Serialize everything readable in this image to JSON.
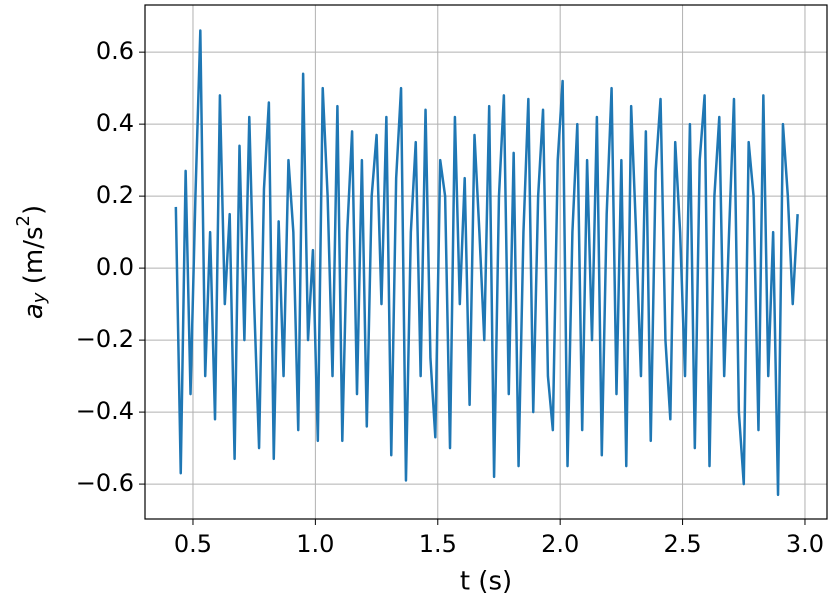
{
  "chart_data": {
    "type": "line",
    "xlabel": "t (s)",
    "ylabel": [
      "a",
      "y",
      " (m/s",
      "2",
      ")"
    ],
    "xlim": [
      0.304,
      3.09
    ],
    "ylim": [
      -0.697,
      0.731
    ],
    "xticks": [
      0.5,
      {
        "value": 1.0,
        "label": "1.0"
      },
      1.5,
      {
        "value": 2.0,
        "label": "2.0"
      },
      2.5,
      {
        "value": 3.0,
        "label": "3.0"
      }
    ],
    "yticks": [
      {
        "value": -0.6,
        "label": "−0.6"
      },
      {
        "value": -0.4,
        "label": "−0.4"
      },
      {
        "value": -0.2,
        "label": "−0.2"
      },
      {
        "value": 0,
        "label": "0.0"
      },
      0.2,
      0.4,
      0.6
    ],
    "grid": true,
    "x": [
      0.43,
      0.45,
      0.47,
      0.49,
      0.51,
      0.53,
      0.55,
      0.57,
      0.59,
      0.61,
      0.63,
      0.65,
      0.67,
      0.69,
      0.71,
      0.73,
      0.75,
      0.77,
      0.79,
      0.81,
      0.83,
      0.85,
      0.87,
      0.89,
      0.91,
      0.93,
      0.95,
      0.97,
      0.99,
      1.01,
      1.03,
      1.05,
      1.07,
      1.09,
      1.11,
      1.13,
      1.15,
      1.17,
      1.19,
      1.21,
      1.23,
      1.25,
      1.27,
      1.29,
      1.31,
      1.33,
      1.35,
      1.37,
      1.39,
      1.41,
      1.43,
      1.45,
      1.47,
      1.49,
      1.51,
      1.53,
      1.55,
      1.57,
      1.59,
      1.61,
      1.63,
      1.65,
      1.67,
      1.69,
      1.71,
      1.73,
      1.75,
      1.77,
      1.79,
      1.81,
      1.83,
      1.85,
      1.87,
      1.89,
      1.91,
      1.93,
      1.95,
      1.97,
      1.99,
      2.01,
      2.03,
      2.05,
      2.07,
      2.09,
      2.11,
      2.13,
      2.15,
      2.17,
      2.19,
      2.21,
      2.23,
      2.25,
      2.27,
      2.29,
      2.31,
      2.33,
      2.35,
      2.37,
      2.39,
      2.41,
      2.43,
      2.45,
      2.47,
      2.49,
      2.51,
      2.53,
      2.55,
      2.57,
      2.59,
      2.61,
      2.63,
      2.65,
      2.67,
      2.69,
      2.71,
      2.73,
      2.75,
      2.77,
      2.79,
      2.81,
      2.83,
      2.85,
      2.87,
      2.89,
      2.91,
      2.93,
      2.95,
      2.97
    ],
    "series": [
      {
        "color": "#1f77b4",
        "values": [
          0.17,
          -0.57,
          0.27,
          -0.35,
          0.2,
          0.66,
          -0.3,
          0.1,
          -0.42,
          0.48,
          -0.1,
          0.15,
          -0.53,
          0.34,
          -0.2,
          0.42,
          -0.1,
          -0.5,
          0.22,
          0.46,
          -0.53,
          0.13,
          -0.3,
          0.3,
          0.1,
          -0.45,
          0.54,
          -0.2,
          0.05,
          -0.48,
          0.5,
          0.2,
          -0.3,
          0.45,
          -0.48,
          0.1,
          0.38,
          -0.35,
          0.3,
          -0.44,
          0.2,
          0.37,
          -0.1,
          0.42,
          -0.52,
          0.25,
          0.5,
          -0.59,
          0.1,
          0.35,
          -0.3,
          0.44,
          -0.25,
          -0.47,
          0.3,
          0.2,
          -0.5,
          0.42,
          -0.1,
          0.25,
          -0.38,
          0.37,
          0.1,
          -0.2,
          0.45,
          -0.58,
          0.2,
          0.48,
          -0.35,
          0.32,
          -0.55,
          0.1,
          0.47,
          -0.4,
          0.2,
          0.44,
          -0.3,
          -0.45,
          0.3,
          0.52,
          -0.55,
          0.1,
          0.4,
          -0.45,
          0.3,
          -0.2,
          0.42,
          -0.52,
          0.15,
          0.5,
          -0.35,
          0.3,
          -0.55,
          0.45,
          0.1,
          -0.3,
          0.38,
          -0.48,
          0.27,
          0.47,
          -0.2,
          -0.42,
          0.35,
          0.1,
          -0.3,
          0.4,
          -0.5,
          0.3,
          0.48,
          -0.55,
          0.2,
          0.42,
          -0.3,
          0.1,
          0.47,
          -0.4,
          -0.6,
          0.35,
          0.2,
          -0.45,
          0.48,
          -0.3,
          0.1,
          -0.63,
          0.4,
          0.2,
          -0.1,
          0.15
        ]
      }
    ]
  }
}
